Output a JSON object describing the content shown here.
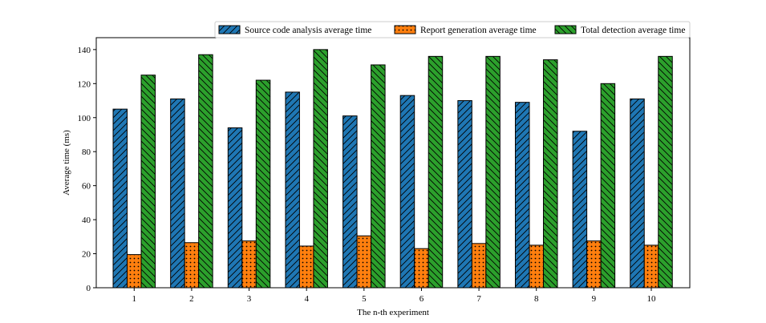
{
  "chart_data": {
    "type": "bar",
    "xlabel": "The n-th experiment",
    "ylabel": "Average time (ms)",
    "categories": [
      "1",
      "2",
      "3",
      "4",
      "5",
      "6",
      "7",
      "8",
      "9",
      "10"
    ],
    "ylim": [
      0,
      147
    ],
    "yticks": [
      0,
      20,
      40,
      60,
      80,
      100,
      120,
      140
    ],
    "grid": false,
    "legend_position": "top-right",
    "series": [
      {
        "name": "Source code analysis average time",
        "color": "#1f77b4",
        "hatch": "diagonal-forward",
        "values": [
          105,
          111,
          94,
          115,
          101,
          113,
          110,
          109,
          92,
          111
        ]
      },
      {
        "name": "Report generation average time",
        "color": "#ff7f0e",
        "hatch": "dots",
        "values": [
          19.5,
          26.5,
          27.5,
          24.5,
          30.5,
          23,
          26,
          25,
          27.5,
          25
        ]
      },
      {
        "name": "Total detection average time",
        "color": "#2ca02c",
        "hatch": "diagonal-backward",
        "values": [
          125,
          137,
          122,
          140,
          131,
          136,
          136,
          134,
          120,
          136
        ]
      }
    ]
  }
}
